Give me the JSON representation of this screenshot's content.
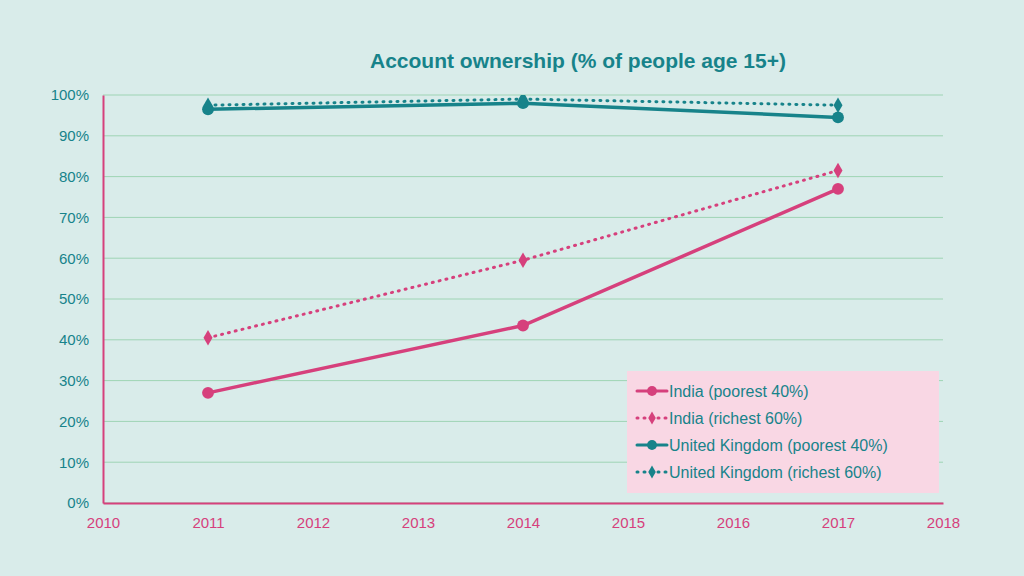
{
  "chart_data": {
    "type": "line",
    "title": "Account ownership (% of people age 15+)",
    "x": [
      2011,
      2014,
      2017
    ],
    "xlim": [
      2010,
      2018
    ],
    "xticks": [
      2010,
      2011,
      2012,
      2013,
      2014,
      2015,
      2016,
      2017,
      2018
    ],
    "ylim": [
      0,
      100
    ],
    "yticks": [
      {
        "value": 0,
        "label": "0%"
      },
      {
        "value": 10,
        "label": "10%"
      },
      {
        "value": 20,
        "label": "20%"
      },
      {
        "value": 30,
        "label": "30%"
      },
      {
        "value": 40,
        "label": "40%"
      },
      {
        "value": 50,
        "label": "50%"
      },
      {
        "value": 60,
        "label": "60%"
      },
      {
        "value": 70,
        "label": "70%"
      },
      {
        "value": 80,
        "label": "80%"
      },
      {
        "value": 90,
        "label": "90%"
      },
      {
        "value": 100,
        "label": "100%"
      }
    ],
    "grid": true,
    "legend": "lower right",
    "series": [
      {
        "name": "India (poorest 40%)",
        "color": "#d6407c",
        "marker": "circle",
        "line_style": "solid",
        "values": [
          27,
          43.5,
          77
        ]
      },
      {
        "name": "India (richest 60%)",
        "color": "#d6407c",
        "marker": "diamond",
        "line_style": "dotted",
        "values": [
          40.5,
          59.5,
          81.5
        ]
      },
      {
        "name": "United Kingdom (poorest 40%)",
        "color": "#17838a",
        "marker": "circle",
        "line_style": "solid",
        "values": [
          96.5,
          98,
          94.5
        ]
      },
      {
        "name": "United Kingdom (richest 60%)",
        "color": "#17838a",
        "marker": "diamond",
        "line_style": "dotted",
        "values": [
          97.5,
          99,
          97.5
        ]
      }
    ]
  }
}
